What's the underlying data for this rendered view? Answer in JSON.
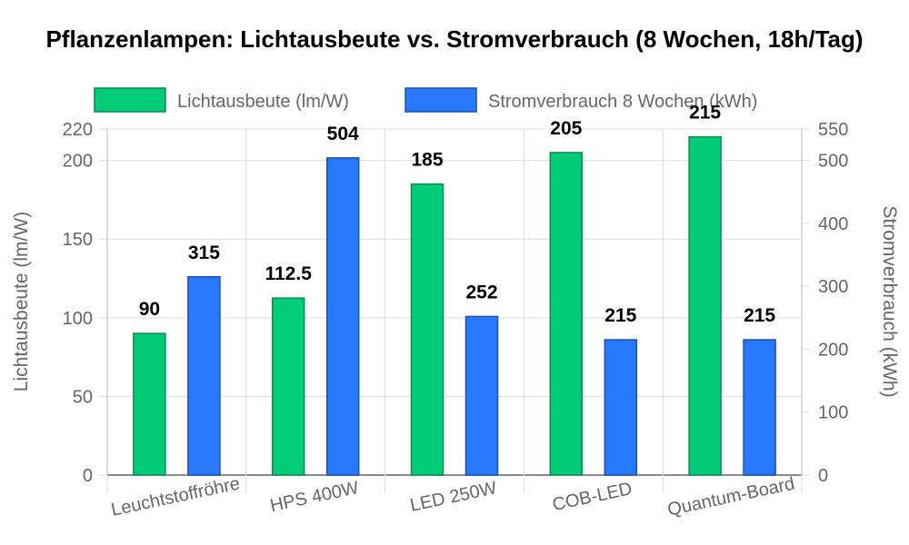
{
  "chart_data": {
    "type": "bar",
    "title": "Pflanzenlampen: Lichtausbeute vs. Stromverbrauch (8 Wochen, 18h/Tag)",
    "categories": [
      "Leuchtstoffröhre",
      "HPS 400W",
      "LED 250W",
      "COB-LED",
      "Quantum-Board"
    ],
    "series": [
      {
        "name": "Lichtausbeute (lm/W)",
        "axis": "left",
        "color": "#00cc77",
        "border": "#0b8a50",
        "values": [
          90,
          112.5,
          185,
          205,
          215
        ]
      },
      {
        "name": "Stromverbrauch 8 Wochen (kWh)",
        "axis": "right",
        "color": "#2979ff",
        "border": "#1a4fb0",
        "values": [
          315,
          504,
          252,
          215,
          215
        ]
      }
    ],
    "y_left": {
      "label": "Lichtausbeute (lm/W)",
      "min": 0,
      "max": 220,
      "ticks": [
        0,
        50,
        100,
        150,
        200,
        220
      ]
    },
    "y_right": {
      "label": "Stromverbrauch (kWh)",
      "min": 0,
      "max": 550,
      "ticks": [
        0,
        100,
        200,
        300,
        400,
        500,
        550
      ]
    },
    "legend_position": "top",
    "grid": true
  }
}
